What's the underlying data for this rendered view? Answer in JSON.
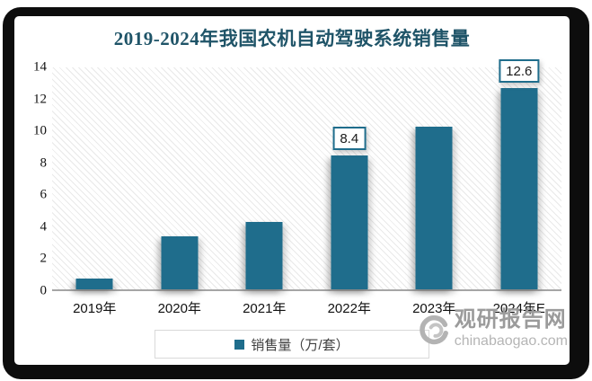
{
  "title": "2019-2024年我国农机自动驾驶系统销售量",
  "chart_data": {
    "type": "bar",
    "title": "2019-2024年我国农机自动驾驶系统销售量",
    "categories": [
      "2019年",
      "2020年",
      "2021年",
      "2022年",
      "2023年",
      "2024年E"
    ],
    "values": [
      0.7,
      3.3,
      4.2,
      8.4,
      10.2,
      12.6
    ],
    "bar_labels": [
      null,
      null,
      null,
      "8.4",
      null,
      "12.6"
    ],
    "series_name": "销售量（万/套）",
    "xlabel": "",
    "ylabel": "",
    "ylim": [
      0,
      14
    ],
    "yticks": [
      0,
      2,
      4,
      6,
      8,
      10,
      12,
      14
    ],
    "grid": false,
    "legend_position": "bottom",
    "plot_background": "diagonal-hatch"
  },
  "legend": {
    "label": "销售量（万/套）"
  },
  "watermark": {
    "name": "观研报告网",
    "domain": "chinabaogao.com",
    "logo": "swirl-icon"
  },
  "colors": {
    "bar": "#1F6D8C",
    "title": "#1F5468",
    "axis_line": "#A6A6A6",
    "tick_text": "#111111",
    "legend_border": "#D9D9D9",
    "watermark_name": "#9B9B9B",
    "watermark_domain": "#B5B5B5"
  }
}
